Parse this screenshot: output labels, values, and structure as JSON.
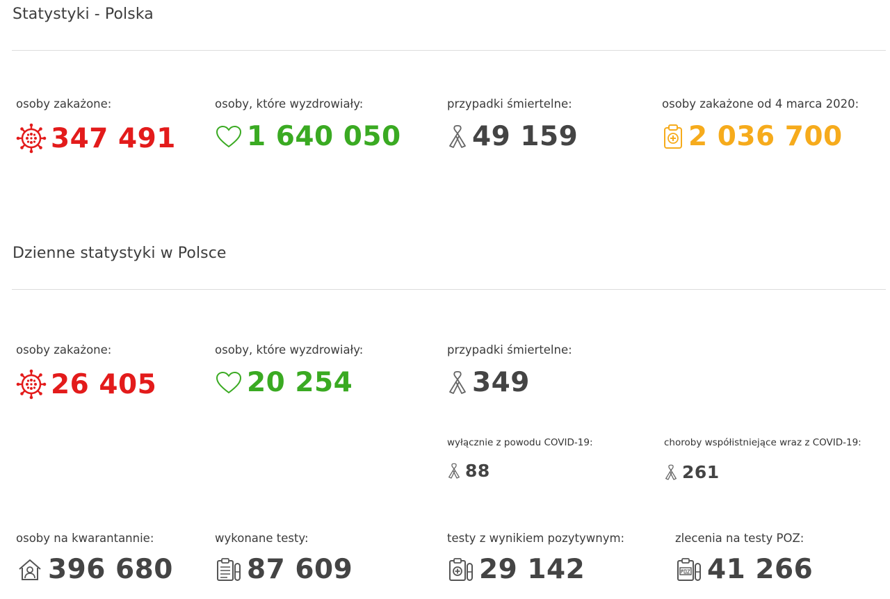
{
  "colors": {
    "red": "#e31b1b",
    "green": "#3aaa22",
    "dark": "#444444",
    "orange": "#f6ab1c"
  },
  "total": {
    "title": "Statystyki - Polska",
    "stats": [
      {
        "label": "osoby zakażone:",
        "value": "347 491",
        "icon": "virus-icon"
      },
      {
        "label": "osoby, które wyzdrowiały:",
        "value": "1 640 050",
        "icon": "heart-icon"
      },
      {
        "label": "przypadki śmiertelne:",
        "value": "49 159",
        "icon": "ribbon-icon"
      },
      {
        "label": "osoby zakażone od 4 marca 2020:",
        "value": "2 036 700",
        "icon": "clipboard-plus-icon"
      }
    ]
  },
  "daily": {
    "title": "Dzienne statystyki w Polsce",
    "stats": [
      {
        "label": "osoby zakażone:",
        "value": "26 405",
        "icon": "virus-icon"
      },
      {
        "label": "osoby, które wyzdrowiały:",
        "value": "20 254",
        "icon": "heart-icon"
      },
      {
        "label": "przypadki śmiertelne:",
        "value": "349",
        "icon": "ribbon-icon"
      }
    ],
    "deaths_breakdown": [
      {
        "label": "wyłącznie z powodu COVID-19:",
        "value": "88",
        "icon": "ribbon-icon"
      },
      {
        "label": "choroby współistniejące wraz z COVID-19:",
        "value": "261",
        "icon": "ribbon-icon"
      }
    ],
    "extra": [
      {
        "label": "osoby na kwarantannie:",
        "value": "396 680",
        "icon": "house-person-icon"
      },
      {
        "label": "wykonane testy:",
        "value": "87 609",
        "icon": "test-clipboard-icon"
      },
      {
        "label": "testy z wynikiem pozytywnym:",
        "value": "29 142",
        "icon": "positive-test-icon"
      },
      {
        "label": "zlecenia na testy POZ:",
        "value": "41 266",
        "icon": "poz-test-icon"
      }
    ]
  }
}
